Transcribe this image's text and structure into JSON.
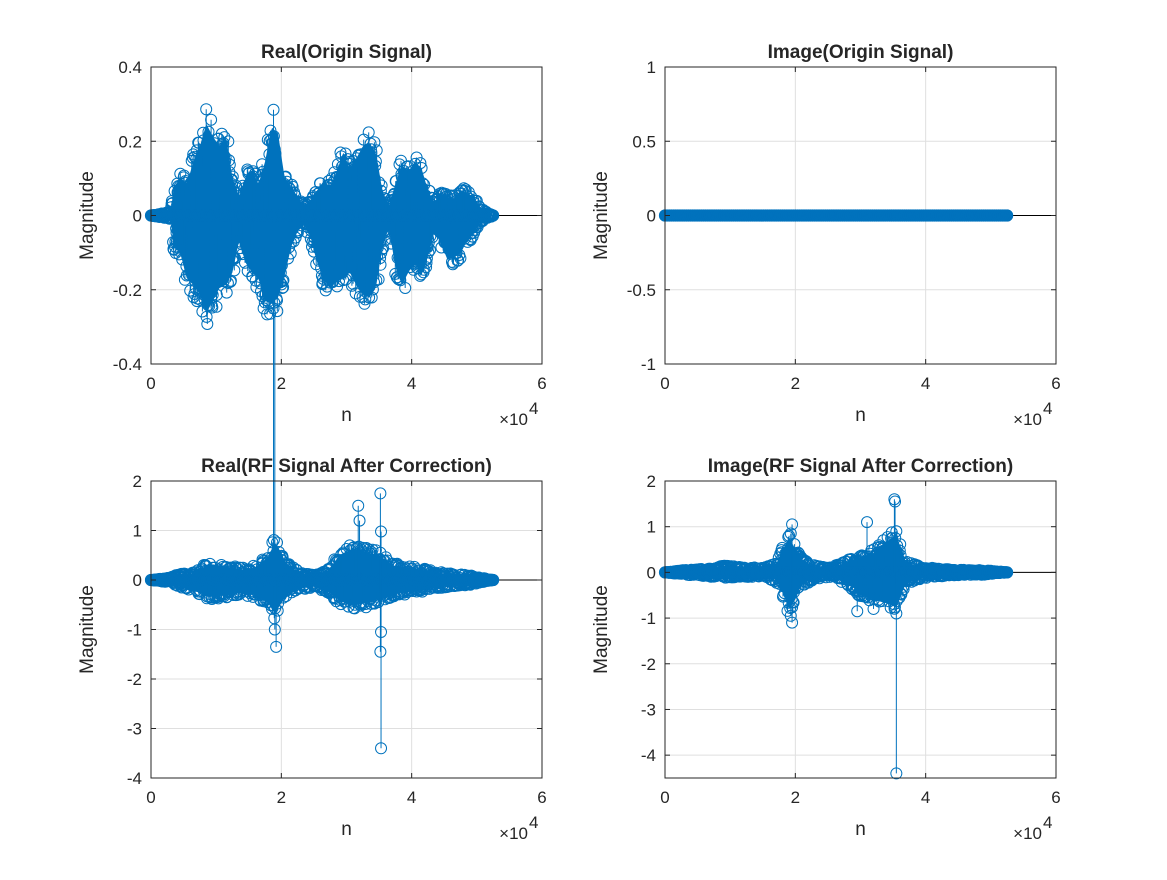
{
  "colors": {
    "series": "#0072BD",
    "axis": "#262626",
    "grid": "#dfdfdf",
    "background": "#ffffff"
  },
  "chart_data": [
    {
      "type": "stem",
      "title": "Real(Origin Signal)",
      "xlabel": "n",
      "ylabel": "Magnitude",
      "x_exponent_label": "×10",
      "x_exponent": "4",
      "xlim": [
        0,
        6
      ],
      "ylim": [
        -0.4,
        0.4
      ],
      "xticks": [
        0,
        2,
        4,
        6
      ],
      "xtick_labels": [
        "0",
        "2",
        "4",
        "6"
      ],
      "yticks": [
        -0.4,
        -0.2,
        0,
        0.2,
        0.4
      ],
      "ytick_labels": [
        "-0.4",
        "-0.2",
        "0",
        "0.2",
        "0.4"
      ],
      "grid": true,
      "x_range_of_samples": [
        0,
        5.25
      ],
      "envelope_x": [
        0,
        0.3,
        0.35,
        0.45,
        0.55,
        0.65,
        0.75,
        0.85,
        0.95,
        1.05,
        1.15,
        1.25,
        1.35,
        1.45,
        1.55,
        1.65,
        1.75,
        1.85,
        1.95,
        2.05,
        2.15,
        2.25,
        2.35,
        2.45,
        2.55,
        2.65,
        2.75,
        2.85,
        2.95,
        3.05,
        3.15,
        3.25,
        3.35,
        3.45,
        3.55,
        3.65,
        3.75,
        3.85,
        3.95,
        4.05,
        4.15,
        4.25,
        4.35,
        4.45,
        4.55,
        4.65,
        4.75,
        4.85,
        4.95,
        5.05,
        5.25
      ],
      "envelope_max": [
        0,
        0.01,
        0.09,
        0.12,
        0.1,
        0.17,
        0.22,
        0.29,
        0.25,
        0.22,
        0.25,
        0.12,
        0.06,
        0.12,
        0.14,
        0.1,
        0.17,
        0.28,
        0.26,
        0.12,
        0.09,
        0.06,
        0.03,
        0.05,
        0.08,
        0.11,
        0.09,
        0.14,
        0.2,
        0.15,
        0.18,
        0.22,
        0.23,
        0.2,
        0.08,
        0.03,
        0.1,
        0.16,
        0.14,
        0.17,
        0.15,
        0.08,
        0.04,
        0.07,
        0.06,
        0.05,
        0.08,
        0.07,
        0.06,
        0.02,
        0
      ],
      "envelope_min": [
        0,
        -0.01,
        -0.1,
        -0.12,
        -0.2,
        -0.22,
        -0.25,
        -0.31,
        -0.27,
        -0.23,
        -0.22,
        -0.18,
        -0.08,
        -0.15,
        -0.18,
        -0.2,
        -0.27,
        -0.28,
        -0.26,
        -0.19,
        -0.1,
        -0.05,
        -0.03,
        -0.07,
        -0.15,
        -0.2,
        -0.23,
        -0.21,
        -0.2,
        -0.18,
        -0.22,
        -0.25,
        -0.26,
        -0.23,
        -0.1,
        -0.04,
        -0.16,
        -0.22,
        -0.18,
        -0.15,
        -0.19,
        -0.13,
        -0.05,
        -0.09,
        -0.14,
        -0.13,
        -0.12,
        -0.08,
        -0.06,
        -0.02,
        0
      ]
    },
    {
      "type": "stem",
      "title": "Image(Origin Signal)",
      "xlabel": "n",
      "ylabel": "Magnitude",
      "x_exponent_label": "×10",
      "x_exponent": "4",
      "xlim": [
        0,
        6
      ],
      "ylim": [
        -1,
        1
      ],
      "xticks": [
        0,
        2,
        4,
        6
      ],
      "xtick_labels": [
        "0",
        "2",
        "4",
        "6"
      ],
      "yticks": [
        -1,
        -0.5,
        0,
        0.5,
        1
      ],
      "ytick_labels": [
        "-1",
        "-0.5",
        "0",
        "0.5",
        "1"
      ],
      "grid": true,
      "x_range_of_samples": [
        0,
        5.25
      ],
      "envelope_x": [
        0,
        5.25
      ],
      "envelope_max": [
        0,
        0
      ],
      "envelope_min": [
        0,
        0
      ]
    },
    {
      "type": "stem",
      "title": "Real(RF Signal After Correction)",
      "xlabel": "n",
      "ylabel": "Magnitude",
      "x_exponent_label": "×10",
      "x_exponent": "4",
      "xlim": [
        0,
        6
      ],
      "ylim": [
        -4,
        2
      ],
      "xticks": [
        0,
        2,
        4,
        6
      ],
      "xtick_labels": [
        "0",
        "2",
        "4",
        "6"
      ],
      "yticks": [
        -4,
        -3,
        -2,
        -1,
        0,
        1,
        2
      ],
      "ytick_labels": [
        "-4",
        "-3",
        "-2",
        "-1",
        "0",
        "1",
        "2"
      ],
      "grid": true,
      "x_range_of_samples": [
        0,
        5.25
      ],
      "envelope_x": [
        0,
        0.3,
        0.45,
        0.6,
        0.75,
        0.9,
        1.05,
        1.2,
        1.4,
        1.6,
        1.8,
        1.9,
        2.1,
        2.3,
        2.5,
        2.7,
        2.9,
        3.1,
        3.3,
        3.5,
        3.7,
        3.9,
        4.1,
        4.3,
        4.5,
        4.7,
        4.9,
        5.05,
        5.25
      ],
      "envelope_max": [
        0,
        0.05,
        0.15,
        0.12,
        0.25,
        0.38,
        0.35,
        0.3,
        0.25,
        0.3,
        0.55,
        0.9,
        0.35,
        0.15,
        0.1,
        0.2,
        0.6,
        0.75,
        0.65,
        0.6,
        0.35,
        0.3,
        0.25,
        0.2,
        0.15,
        0.12,
        0.1,
        0.05,
        0
      ],
      "envelope_min": [
        0,
        -0.05,
        -0.15,
        -0.25,
        -0.3,
        -0.4,
        -0.38,
        -0.35,
        -0.3,
        -0.35,
        -0.55,
        -0.8,
        -0.3,
        -0.2,
        -0.15,
        -0.25,
        -0.5,
        -0.6,
        -0.55,
        -0.45,
        -0.35,
        -0.3,
        -0.25,
        -0.2,
        -0.15,
        -0.12,
        -0.1,
        -0.05,
        0
      ],
      "highlighted_points": [
        {
          "x": 1.88,
          "y": 9.5
        },
        {
          "x": 1.9,
          "y": 8.7
        },
        {
          "x": 1.92,
          "y": -1.35
        },
        {
          "x": 1.9,
          "y": -1.0
        },
        {
          "x": 3.18,
          "y": 1.5
        },
        {
          "x": 3.2,
          "y": 1.2
        },
        {
          "x": 3.05,
          "y": 0.7
        },
        {
          "x": 3.52,
          "y": 1.75
        },
        {
          "x": 3.53,
          "y": 0.98
        },
        {
          "x": 3.52,
          "y": 0.55
        },
        {
          "x": 3.53,
          "y": -1.05
        },
        {
          "x": 3.52,
          "y": -1.45
        },
        {
          "x": 3.53,
          "y": -3.4
        }
      ]
    },
    {
      "type": "stem",
      "title": "Image(RF Signal After Correction)",
      "xlabel": "n",
      "ylabel": "Magnitude",
      "x_exponent_label": "×10",
      "x_exponent": "4",
      "xlim": [
        0,
        6
      ],
      "ylim": [
        -4.5,
        2
      ],
      "xticks": [
        0,
        2,
        4,
        6
      ],
      "xtick_labels": [
        "0",
        "2",
        "4",
        "6"
      ],
      "yticks": [
        -4,
        -3,
        -2,
        -1,
        0,
        1,
        2
      ],
      "ytick_labels": [
        "-4",
        "-3",
        "-2",
        "-1",
        "0",
        "1",
        "2"
      ],
      "grid": true,
      "x_range_of_samples": [
        0,
        5.25
      ],
      "envelope_x": [
        0,
        0.3,
        0.6,
        0.9,
        1.2,
        1.5,
        1.7,
        1.8,
        1.9,
        2.0,
        2.1,
        2.3,
        2.5,
        2.7,
        2.9,
        3.0,
        3.2,
        3.4,
        3.55,
        3.7,
        3.9,
        4.1,
        4.3,
        4.5,
        4.7,
        4.9,
        5.05,
        5.25
      ],
      "envelope_max": [
        0,
        0.05,
        0.08,
        0.15,
        0.12,
        0.1,
        0.2,
        0.55,
        0.9,
        0.6,
        0.3,
        0.15,
        0.1,
        0.2,
        0.35,
        0.4,
        0.5,
        0.8,
        0.95,
        0.25,
        0.15,
        0.1,
        0.08,
        0.06,
        0.05,
        0.05,
        0.03,
        0
      ],
      "envelope_min": [
        0,
        -0.05,
        -0.08,
        -0.12,
        -0.1,
        -0.1,
        -0.2,
        -0.5,
        -0.95,
        -0.7,
        -0.3,
        -0.15,
        -0.1,
        -0.2,
        -0.4,
        -0.6,
        -0.7,
        -0.8,
        -0.9,
        -0.25,
        -0.15,
        -0.1,
        -0.08,
        -0.06,
        -0.05,
        -0.05,
        -0.03,
        0
      ],
      "highlighted_points": [
        {
          "x": 1.95,
          "y": 1.05
        },
        {
          "x": 1.93,
          "y": 0.85
        },
        {
          "x": 1.95,
          "y": -1.1
        },
        {
          "x": 1.93,
          "y": -0.95
        },
        {
          "x": 3.1,
          "y": 1.1
        },
        {
          "x": 2.95,
          "y": -0.85
        },
        {
          "x": 3.2,
          "y": -0.8
        },
        {
          "x": 3.52,
          "y": 1.6
        },
        {
          "x": 3.53,
          "y": 1.55
        },
        {
          "x": 3.55,
          "y": 0.9
        },
        {
          "x": 3.55,
          "y": -0.9
        },
        {
          "x": 3.55,
          "y": -4.4
        }
      ]
    }
  ]
}
